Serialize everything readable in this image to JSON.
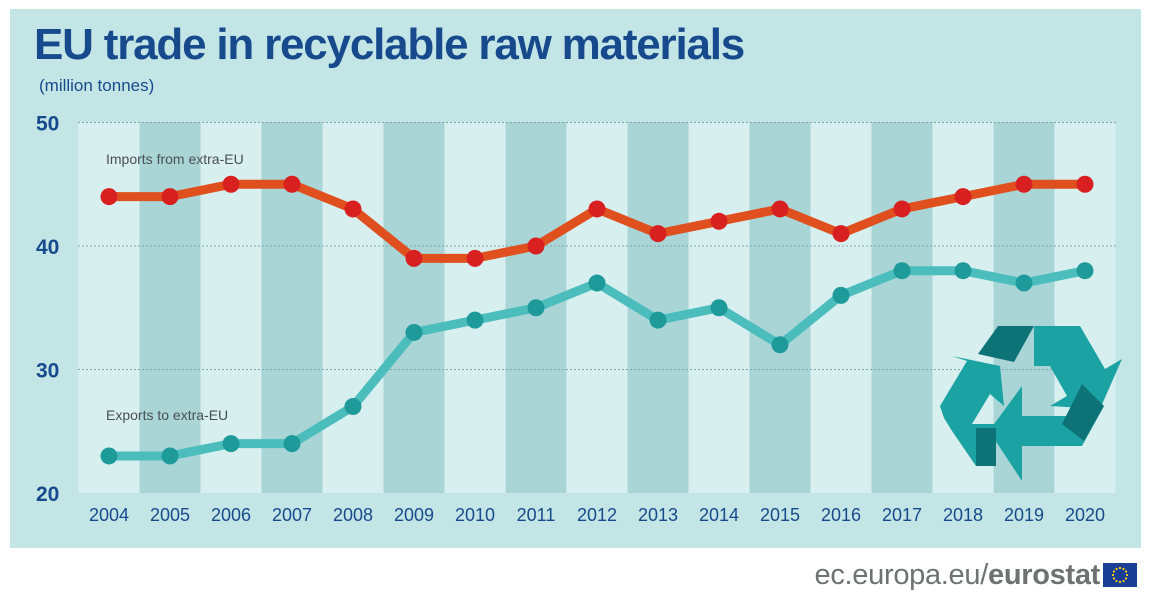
{
  "title": "EU trade in recyclable raw materials",
  "subtitle": "(million tonnes)",
  "footer": {
    "url": "ec.europa.eu/",
    "brand": "eurostat"
  },
  "icons": {
    "recycle": "recycle-icon",
    "flag": "eu-flag-icon"
  },
  "colors": {
    "background": "#c3e5e6",
    "band_light": "#d8efef",
    "band_dark": "#a9d5d6",
    "imports_line": "#e0501f",
    "imports_marker": "#d82020",
    "exports_line": "#4bbdbd",
    "exports_marker": "#1f9a9b",
    "title": "#174a8c",
    "recycle_light": "#1ba2a3",
    "recycle_dark": "#0e7376"
  },
  "chart_data": {
    "type": "line",
    "title": "EU trade in recyclable raw materials",
    "subtitle": "(million tonnes)",
    "x": [
      "2004",
      "2005",
      "2006",
      "2007",
      "2008",
      "2009",
      "2010",
      "2011",
      "2012",
      "2013",
      "2014",
      "2015",
      "2016",
      "2017",
      "2018",
      "2019",
      "2020"
    ],
    "ylim": [
      20,
      50
    ],
    "yticks": [
      20,
      30,
      40,
      50
    ],
    "grid": true,
    "series": [
      {
        "name": "Imports from extra-EU",
        "values": [
          44,
          44,
          45,
          45,
          43,
          39,
          39,
          40,
          43,
          41,
          42,
          43,
          41,
          43,
          44,
          45,
          45
        ]
      },
      {
        "name": "Exports to extra-EU",
        "values": [
          23,
          23,
          24,
          24,
          27,
          33,
          34,
          35,
          37,
          34,
          35,
          32,
          36,
          38,
          38,
          37,
          38
        ]
      }
    ]
  }
}
